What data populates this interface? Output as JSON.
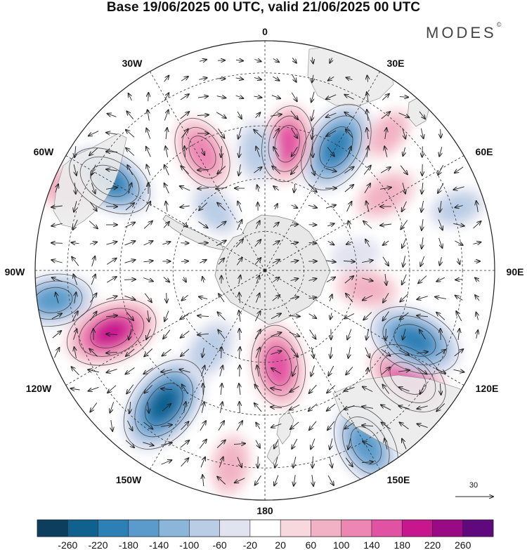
{
  "title": "Base 19/06/2025 00 UTC, valid 21/06/2025 00 UTC",
  "brand": {
    "name": "MODES",
    "mark": "©"
  },
  "longitude_labels": {
    "north": "0",
    "e30": "30E",
    "e60": "60E",
    "e90": "90E",
    "e120": "120E",
    "e150": "150E",
    "south": "180",
    "w150": "150W",
    "w120": "120W",
    "w90": "90W",
    "w60": "60W",
    "w30": "30W"
  },
  "reference_vector": {
    "label": "30"
  },
  "colorbar": {
    "ticks": [
      "-260",
      "-220",
      "-180",
      "-140",
      "-100",
      "-60",
      "-20",
      "20",
      "60",
      "100",
      "140",
      "180",
      "220",
      "260"
    ],
    "colors": [
      "#0d3e5e",
      "#11618f",
      "#2d80b5",
      "#5a9bcb",
      "#8bb5d9",
      "#b9cde6",
      "#e2e3f0",
      "#ffffff",
      "#f7d8de",
      "#f2b2c5",
      "#ec86b3",
      "#e252a3",
      "#c8178e",
      "#9b0a86",
      "#5e0a7e"
    ]
  },
  "anomaly_centers": [
    {
      "lon_deg": 30,
      "lat_frac": 0.62,
      "value": -200
    },
    {
      "lon_deg": 10,
      "lat_frac": 0.56,
      "value": 140
    },
    {
      "lon_deg": -4,
      "lat_frac": 0.52,
      "value": -80
    },
    {
      "lon_deg": -28,
      "lat_frac": 0.58,
      "value": 130
    },
    {
      "lon_deg": -60,
      "lat_frac": 0.78,
      "value": -180
    },
    {
      "lon_deg": -68,
      "lat_frac": 0.95,
      "value": 90
    },
    {
      "lon_deg": -98,
      "lat_frac": 0.93,
      "value": -150
    },
    {
      "lon_deg": -112,
      "lat_frac": 0.72,
      "value": 200
    },
    {
      "lon_deg": -143,
      "lat_frac": 0.73,
      "value": -230
    },
    {
      "lon_deg": -145,
      "lat_frac": 0.42,
      "value": -90
    },
    {
      "lon_deg": -170,
      "lat_frac": 0.86,
      "value": 80
    },
    {
      "lon_deg": 172,
      "lat_frac": 0.42,
      "value": 160
    },
    {
      "lon_deg": 150,
      "lat_frac": 0.88,
      "value": -170
    },
    {
      "lon_deg": 127,
      "lat_frac": 0.78,
      "value": 170
    },
    {
      "lon_deg": 115,
      "lat_frac": 0.72,
      "value": -200
    },
    {
      "lon_deg": 100,
      "lat_frac": 0.45,
      "value": 80
    },
    {
      "lon_deg": 58,
      "lat_frac": 0.62,
      "value": 90
    },
    {
      "lon_deg": 72,
      "lat_frac": 0.88,
      "value": -60
    },
    {
      "lon_deg": 42,
      "lat_frac": 0.8,
      "value": 60
    },
    {
      "lon_deg": 80,
      "lat_frac": 0.4,
      "value": -30
    },
    {
      "lon_deg": -40,
      "lat_frac": 0.34,
      "value": -60
    }
  ]
}
